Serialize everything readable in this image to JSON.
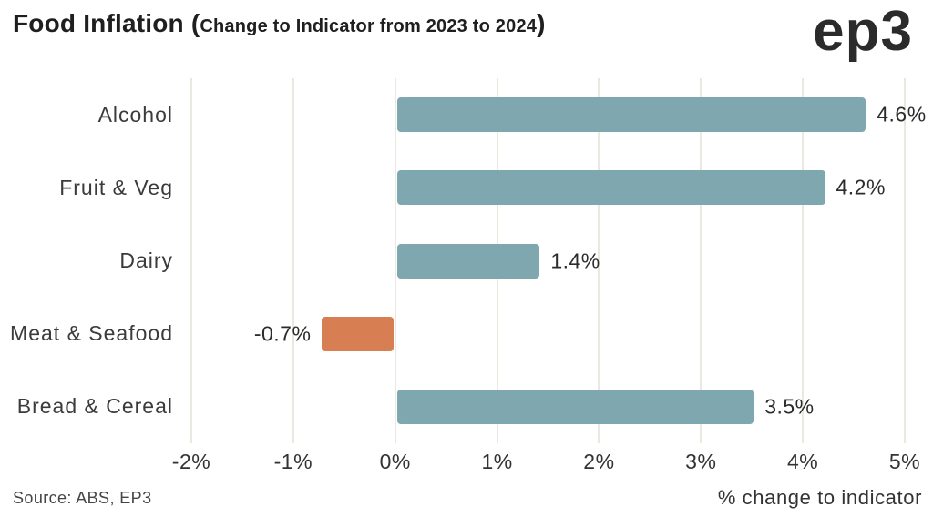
{
  "header": {
    "title_open": "Food Inflation (",
    "title_inner": "Change to Indicator from 2023 to 2024",
    "title_close": ")",
    "logo": "ep3"
  },
  "footer": {
    "source": "Source: ABS, EP3"
  },
  "colors": {
    "positive_bar": "#7ea7b0",
    "negative_bar": "#d87e53",
    "gridline": "#ebe8e0",
    "title_text": "#1f1f1f",
    "axis_text": "#333333"
  },
  "chart_data": {
    "type": "bar",
    "orientation": "horizontal",
    "title": "Food Inflation (Change to Indicator from 2023 to 2024)",
    "categories": [
      "Alcohol",
      "Fruit & Veg",
      "Dairy",
      "Meat & Seafood",
      "Bread & Cereal"
    ],
    "values": [
      4.6,
      4.2,
      1.4,
      -0.7,
      3.5
    ],
    "value_labels": [
      "4.6%",
      "4.2%",
      "1.4%",
      "-0.7%",
      "3.5%"
    ],
    "xlabel": "% change to indicator",
    "ylabel": "",
    "xlim": [
      -2,
      5
    ],
    "xticks": [
      -2,
      -1,
      0,
      1,
      2,
      3,
      4,
      5
    ],
    "xtick_labels": [
      "-2%",
      "-1%",
      "0%",
      "1%",
      "2%",
      "3%",
      "4%",
      "5%"
    ],
    "grid": true,
    "legend": false
  }
}
